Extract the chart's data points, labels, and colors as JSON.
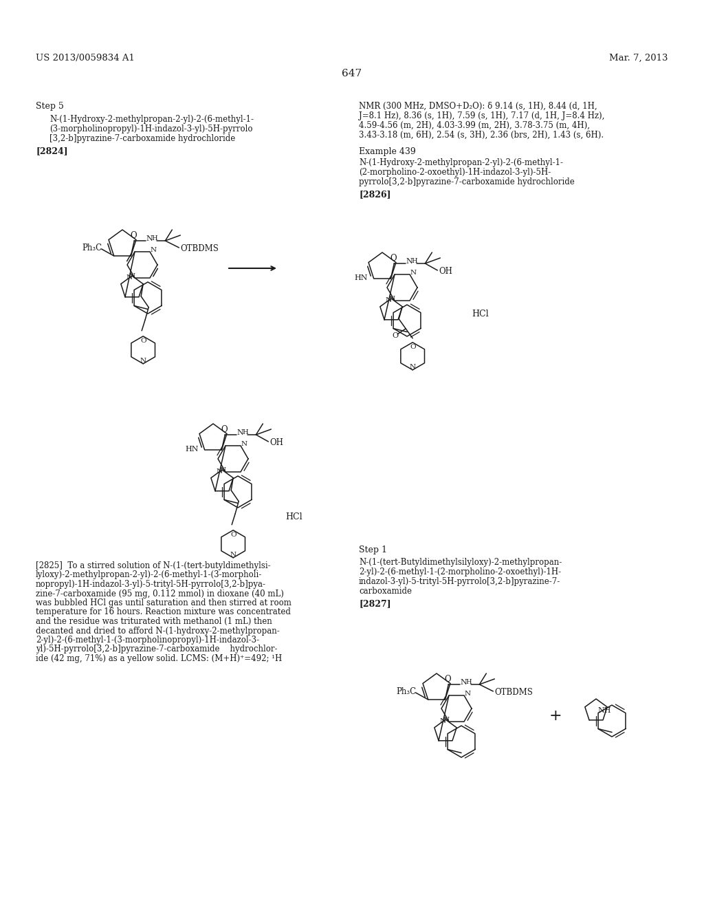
{
  "background_color": "#ffffff",
  "text_color": "#1a1a1a",
  "page_number": "647",
  "header_left": "US 2013/0059834 A1",
  "header_right": "Mar. 7, 2013",
  "step5_label": "Step 5",
  "compound_2824_name_line1": "N-(1-Hydroxy-2-methylpropan-2-yl)-2-(6-methyl-1-",
  "compound_2824_name_line2": "(3-morpholinopropyl)-1H-indazol-3-yl)-5H-pyrrolo",
  "compound_2824_name_line3": "[3,2-b]pyrazine-7-carboxamide hydrochloride",
  "compound_2824_bracket": "[2824]",
  "nmr_line1": "NMR (300 MHz, DMSO+D₂O): δ 9.14 (s, 1H), 8.44 (d, 1H,",
  "nmr_line2": "J=8.1 Hz), 8.36 (s, 1H), 7.59 (s, 1H), 7.17 (d, 1H, J=8.4 Hz),",
  "nmr_line3": "4.59-4.56 (m, 2H), 4.03-3.99 (m, 2H), 3.78-3.75 (m, 4H),",
  "nmr_line4": "3.43-3.18 (m, 6H), 2.54 (s, 3H), 2.36 (brs, 2H), 1.43 (s, 6H).",
  "example_439": "Example 439",
  "compound_2826_name_line1": "N-(1-Hydroxy-2-methylpropan-2-yl)-2-(6-methyl-1-",
  "compound_2826_name_line2": "(2-morpholino-2-oxoethyl)-1H-indazol-3-yl)-5H-",
  "compound_2826_name_line3": "pyrrolo[3,2-b]pyrazine-7-carboxamide hydrochloride",
  "compound_2826_bracket": "[2826]",
  "step1_label": "Step 1",
  "compound_2827_name_line1": "N-(1-(tert-Butyldimethylsilyloxy)-2-methylpropan-",
  "compound_2827_name_line2": "2-yl)-2-(6-methyl-1-(2-morpholino-2-oxoethyl)-1H-",
  "compound_2827_name_line3": "indazol-3-yl)-5-trityl-5H-pyrrolo[3,2-b]pyrazine-7-",
  "compound_2827_name_line4": "carboxamide",
  "compound_2827_bracket": "[2827]",
  "para_line1": "[2825]  To a stirred solution of N-(1-(tert-butyldimethylsi-",
  "para_line2": "lyloxy)-2-methylpropan-2-yl)-2-(6-methyl-1-(3-morpholi-",
  "para_line3": "nopropyl)-1H-indazol-3-yl)-5-trityl-5H-pyrrolo[3,2-b]pya-",
  "para_line4": "zine-7-carboxamide (95 mg, 0.112 mmol) in dioxane (40 mL)",
  "para_line5": "was bubbled HCl gas until saturation and then stirred at room",
  "para_line6": "temperature for 16 hours. Reaction mixture was concentrated",
  "para_line7": "and the residue was triturated with methanol (1 mL) then",
  "para_line8": "decanted and dried to afford N-(1-hydroxy-2-methylpropan-",
  "para_line9": "2-yl)-2-(6-methyl-1-(3-morpholinopropyl)-1H-indazol-3-",
  "para_line10": "yl)-5H-pyrrolo[3,2-b]pyrazine-7-carboxamide    hydrochlor-",
  "para_line11": "ide (42 mg, 71%) as a yellow solid. LCMS: (M+H)⁺=492; ¹H"
}
